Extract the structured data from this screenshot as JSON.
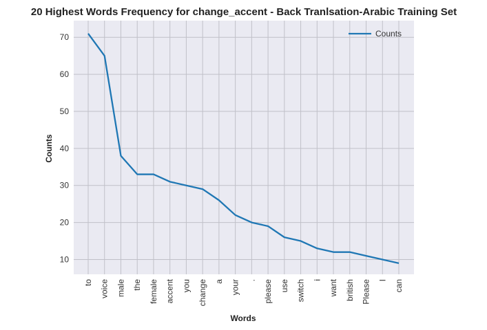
{
  "chart_data": {
    "type": "line",
    "title": "20 Highest Words Frequency for change_accent - Back Tranlsation-Arabic Training Set",
    "xlabel": "Words",
    "ylabel": "Counts",
    "categories": [
      "to",
      "voice",
      "male",
      "the",
      "female",
      "accent",
      "you",
      "change",
      "a",
      "your",
      ".",
      "please",
      "use",
      "switch",
      "i",
      "want",
      "british",
      "Please",
      "I",
      "can"
    ],
    "series": [
      {
        "name": "Counts",
        "color": "#1f77b4",
        "values": [
          71,
          65,
          38,
          33,
          33,
          31,
          30,
          29,
          26,
          22,
          20,
          19,
          16,
          15,
          13,
          12,
          12,
          11,
          10,
          9
        ]
      }
    ],
    "ylim": [
      6,
      74.5
    ],
    "yticks": [
      10,
      20,
      30,
      40,
      50,
      60,
      70
    ],
    "grid": true,
    "legend": "top-right",
    "background": "#eaeaf2",
    "grid_color": "#c0c0c8"
  }
}
